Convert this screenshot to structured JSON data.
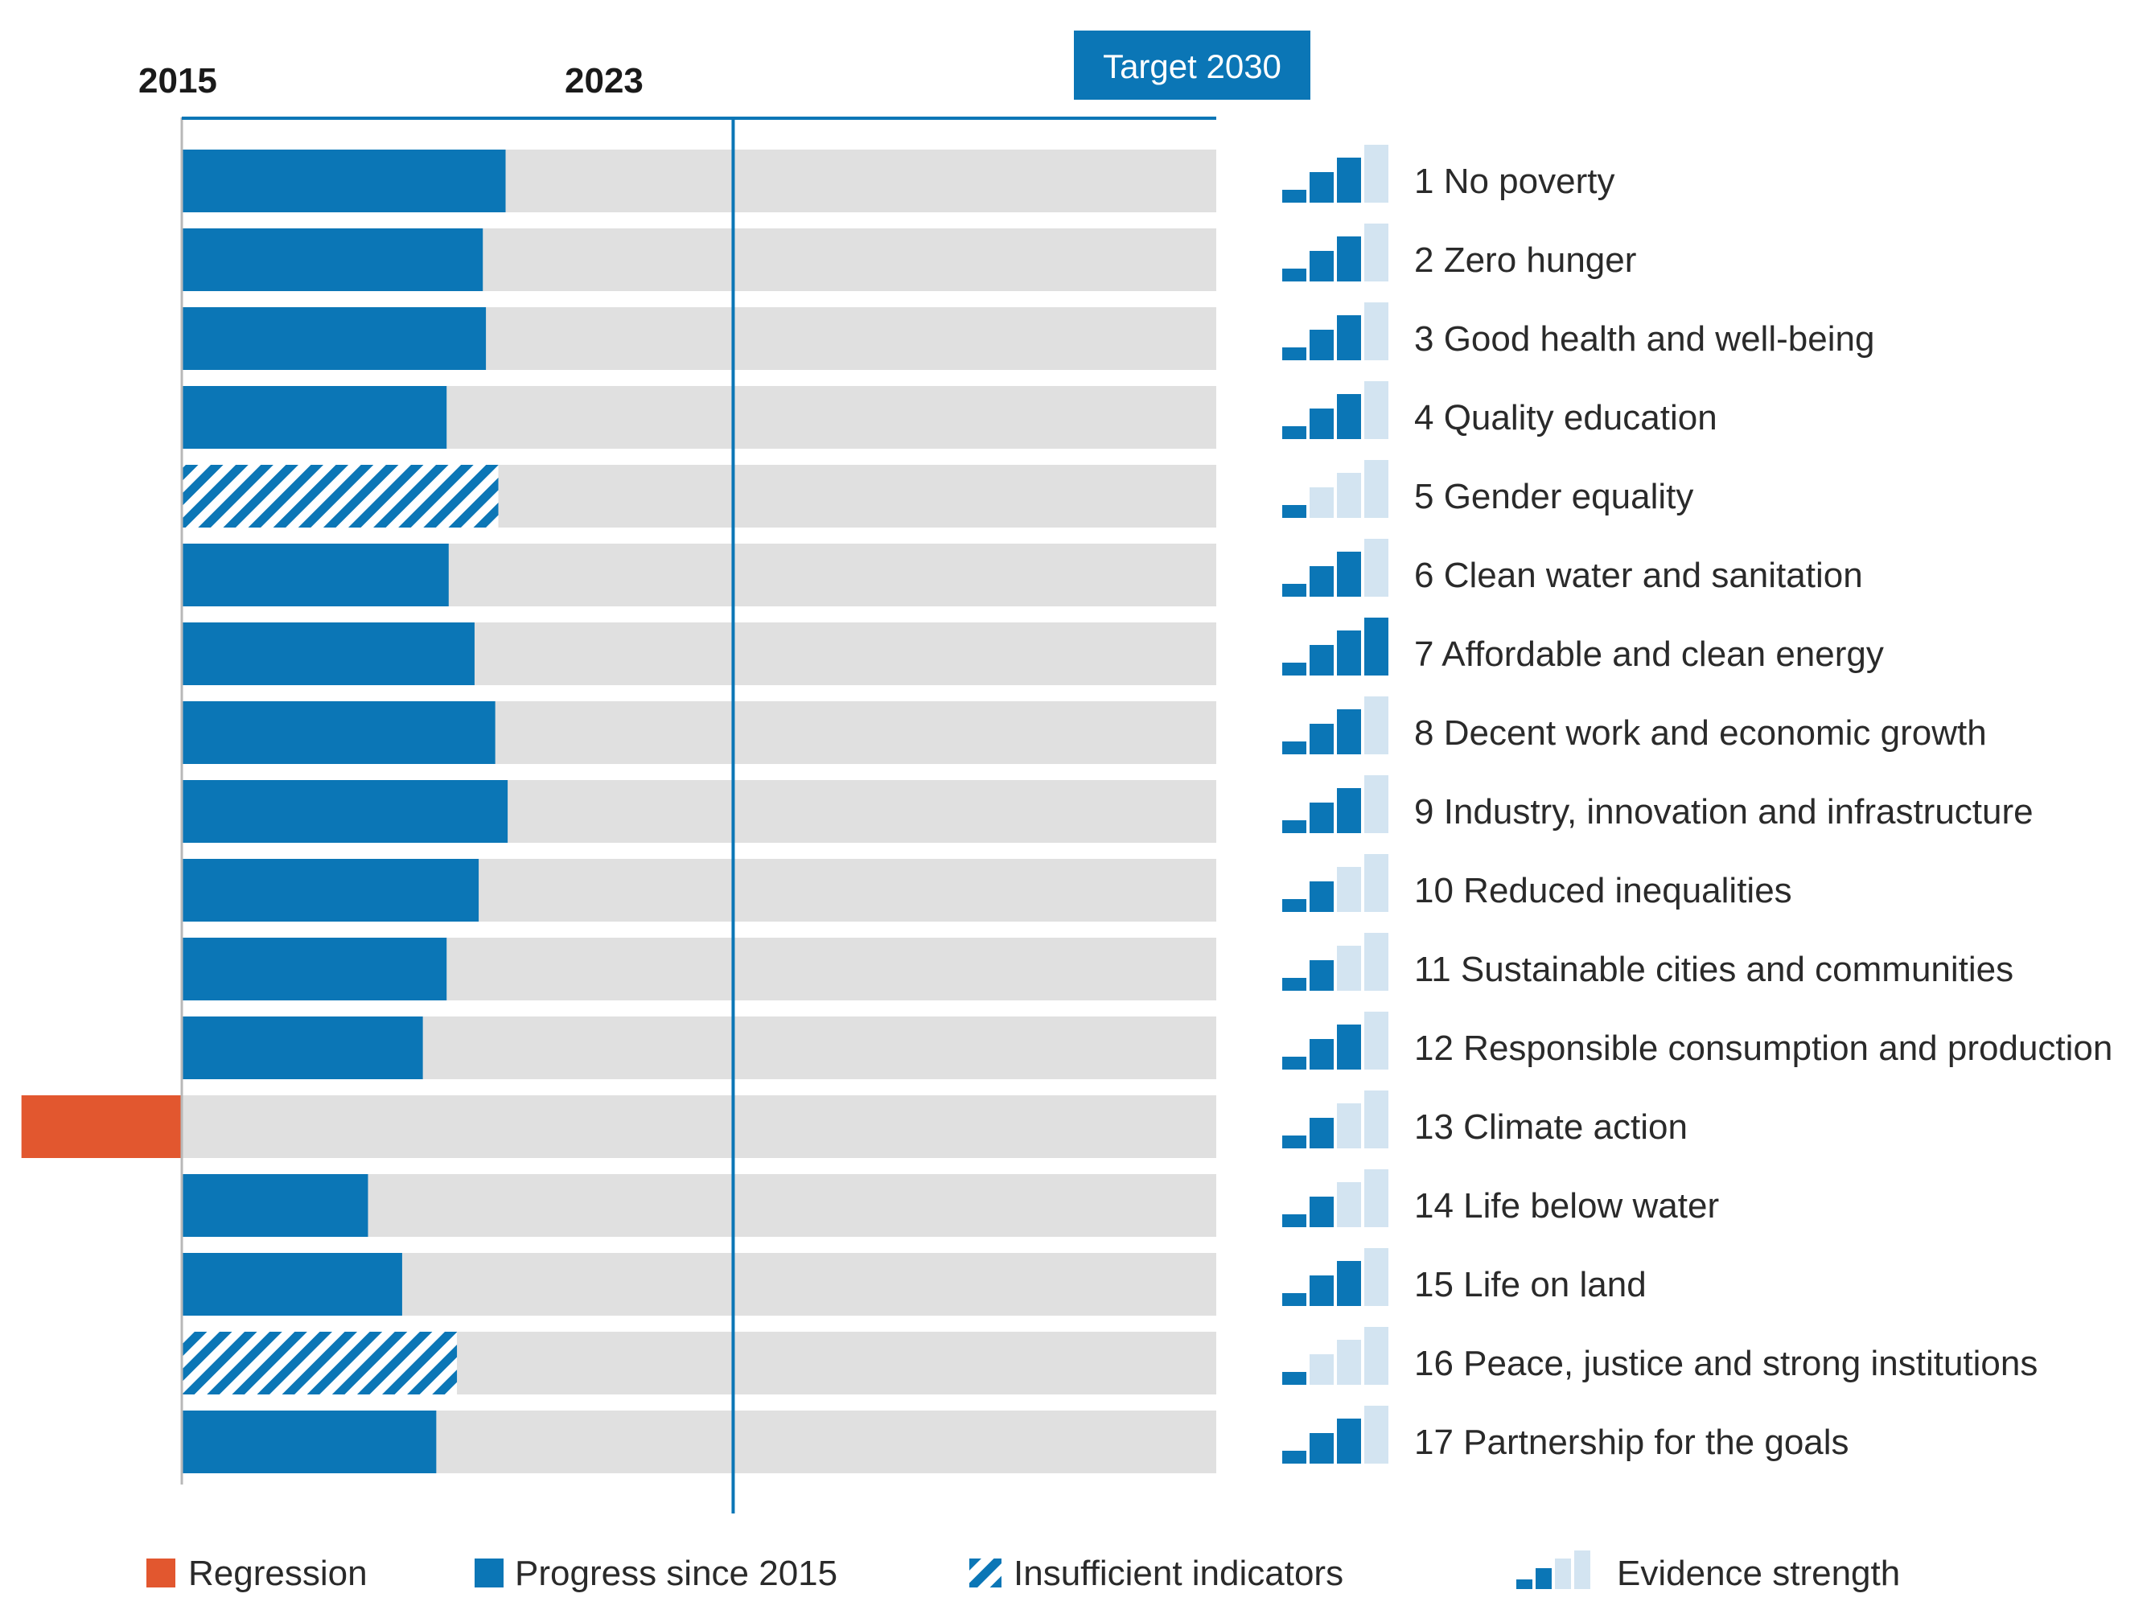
{
  "colors": {
    "progress": "#0b76b6",
    "track": "#e0e0e0",
    "regression": "#e2572f",
    "evidence_light": "#d3e4f1",
    "axis": "#0b76b6"
  },
  "chart_data": {
    "type": "bar",
    "orientation": "horizontal",
    "title": "",
    "xlabel": "",
    "ylabel": "",
    "axis_start_label": "2015",
    "axis_mid_label": "2023",
    "axis_mid_value": 53.3,
    "target_label": "Target 2030",
    "xlim": [
      -20,
      100
    ],
    "categories": [
      "1 No poverty",
      "2 Zero hunger",
      "3 Good health and well-being",
      "4 Quality education",
      "5 Gender equality",
      "6 Clean water and sanitation",
      "7 Affordable and clean energy",
      "8 Decent work and economic growth",
      "9 Industry, innovation and infrastructure",
      "10 Reduced inequalities",
      "11 Sustainable cities and communities",
      "12 Responsible consumption and production",
      "13 Climate action",
      "14 Life below water",
      "15 Life on land",
      "16 Peace, justice and strong institutions",
      "17 Partnership for the goals"
    ],
    "values": [
      31.3,
      29.1,
      29.4,
      25.6,
      30.6,
      25.8,
      28.3,
      30.3,
      31.5,
      28.7,
      25.6,
      23.3,
      -15.5,
      18.0,
      21.3,
      26.6,
      24.6
    ],
    "status": [
      "progress",
      "progress",
      "progress",
      "progress",
      "insufficient",
      "progress",
      "progress",
      "progress",
      "progress",
      "progress",
      "progress",
      "progress",
      "regression",
      "progress",
      "progress",
      "insufficient",
      "progress"
    ],
    "evidence_strength": [
      3,
      3,
      3,
      3,
      1,
      3,
      4,
      3,
      3,
      2,
      2,
      3,
      2,
      2,
      3,
      1,
      3
    ],
    "evidence_max": 4,
    "legend": [
      {
        "key": "regression",
        "label": "Regression"
      },
      {
        "key": "progress",
        "label": "Progress since 2015"
      },
      {
        "key": "insufficient",
        "label": "Insufficient indicators"
      },
      {
        "key": "evidence",
        "label": "Evidence strength"
      }
    ]
  }
}
